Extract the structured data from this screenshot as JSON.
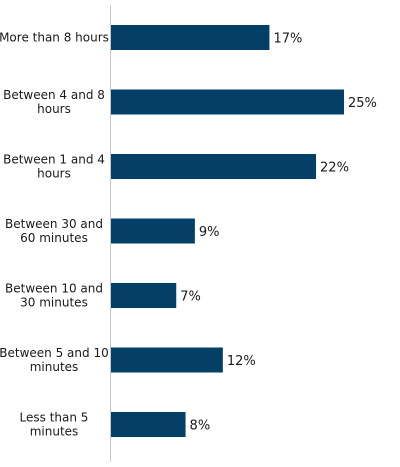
{
  "chart_data": {
    "type": "bar",
    "orientation": "horizontal",
    "categories": [
      "More than 8 hours",
      "Between 4 and 8 hours",
      "Between 1 and 4 hours",
      "Between 30 and 60 minutes",
      "Between 10 and 30 minutes",
      "Between 5 and 10 minutes",
      "Less than 5 minutes"
    ],
    "category_lines": [
      [
        "More than 8 hours"
      ],
      [
        "Between 4 and 8",
        "hours"
      ],
      [
        "Between 1 and 4",
        "hours"
      ],
      [
        "Between 30 and",
        "60 minutes"
      ],
      [
        "Between 10 and",
        "30 minutes"
      ],
      [
        "Between 5 and 10",
        "minutes"
      ],
      [
        "Less than 5",
        "minutes"
      ]
    ],
    "values": [
      17,
      25,
      22,
      9,
      7,
      12,
      8
    ],
    "value_labels": [
      "17%",
      "25%",
      "22%",
      "9%",
      "7%",
      "12%",
      "8%"
    ],
    "xlim": [
      0,
      25
    ],
    "bar_color": "#033f66",
    "grid": false,
    "legend": false
  }
}
